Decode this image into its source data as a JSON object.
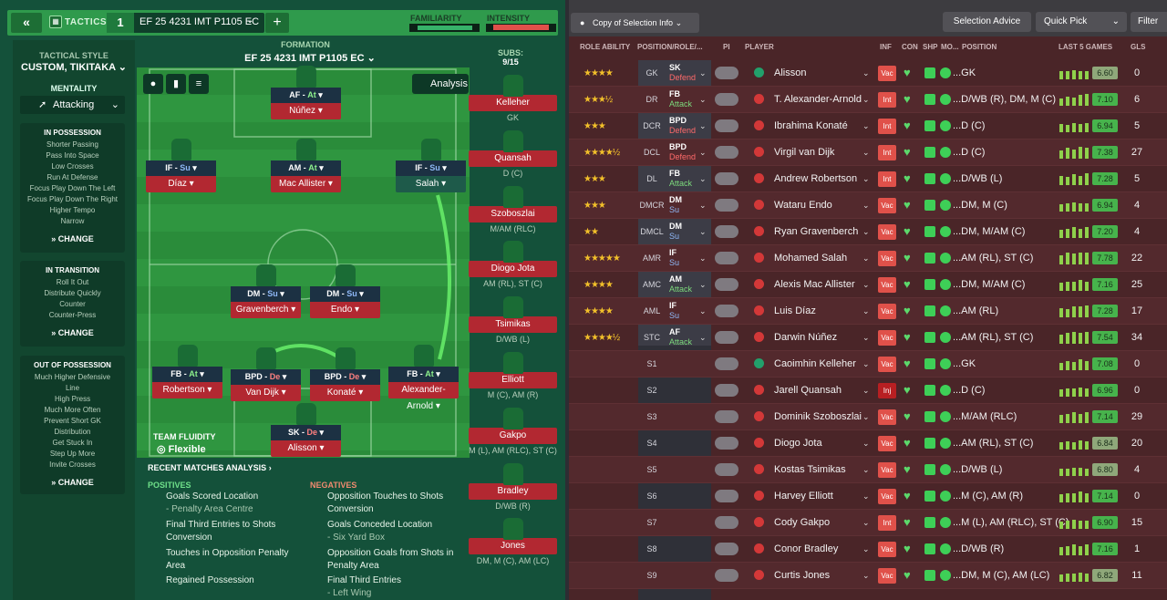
{
  "colors": {
    "accent_green": "#2f9a4c",
    "danger_red": "#b22831",
    "pitch": "#2a8c3a",
    "right_bg": "#4a2528"
  },
  "header": {
    "tactics_label": "TACTICS",
    "tactic_number": "1",
    "tactic_name": "EF 25 4231 IMT P1105 EC",
    "familiarity_label": "FAMILIARITY",
    "intensity_label": "INTENSITY",
    "familiarity_level": 0.88,
    "intensity_level": 0.9
  },
  "style": {
    "label": "TACTICAL STYLE",
    "name": "CUSTOM, TIKITAKA"
  },
  "mentality": {
    "label": "MENTALITY",
    "value": "Attacking"
  },
  "in_possession": {
    "title": "IN POSSESSION",
    "items": [
      "Shorter Passing",
      "Pass Into Space",
      "Low Crosses",
      "Run At Defense",
      "Focus Play Down The Left",
      "Focus Play Down The Right",
      "Higher Tempo",
      "Narrow"
    ],
    "change": "CHANGE"
  },
  "in_transition": {
    "title": "IN TRANSITION",
    "items": [
      "Roll It Out",
      "Distribute Quickly",
      "Counter",
      "Counter-Press"
    ],
    "change": "CHANGE"
  },
  "out_possession": {
    "title": "OUT OF POSSESSION",
    "items": [
      "Much Higher Defensive",
      "Line",
      "High Press",
      "Much More Often",
      "Prevent Short GK",
      "Distribution",
      "Get Stuck In",
      "Step Up More",
      "Invite Crosses"
    ],
    "change": "CHANGE"
  },
  "formation": {
    "label": "FORMATION",
    "name": "EF 25 4231 IMT P1105 EC",
    "analysis": "Analysis"
  },
  "subs": {
    "label": "SUBS:",
    "count": "9/15"
  },
  "pitch_players": [
    {
      "role": "AF",
      "duty": "At",
      "name": "Núñez"
    },
    {
      "role": "IF",
      "duty": "Su",
      "name": "Díaz"
    },
    {
      "role": "AM",
      "duty": "At",
      "name": "Mac Allister"
    },
    {
      "role": "IF",
      "duty": "Su",
      "name": "Salah"
    },
    {
      "role": "DM",
      "duty": "Su",
      "name": "Gravenberch"
    },
    {
      "role": "DM",
      "duty": "Su",
      "name": "Endo"
    },
    {
      "role": "FB",
      "duty": "At",
      "name": "Robertson"
    },
    {
      "role": "BPD",
      "duty": "De",
      "name": "Van Dijk"
    },
    {
      "role": "BPD",
      "duty": "De",
      "name": "Konaté"
    },
    {
      "role": "FB",
      "duty": "At",
      "name": "Alexander-Arnold"
    },
    {
      "role": "SK",
      "duty": "De",
      "name": "Alisson"
    }
  ],
  "subs_list": [
    {
      "name": "Kelleher",
      "pos": "GK"
    },
    {
      "name": "Quansah",
      "pos": "D (C)"
    },
    {
      "name": "Szoboszlai",
      "pos": "M/AM (RLC)"
    },
    {
      "name": "Diogo Jota",
      "pos": "AM (RL), ST (C)"
    },
    {
      "name": "Tsimikas",
      "pos": "D/WB (L)"
    },
    {
      "name": "Elliott",
      "pos": "M (C), AM (R)"
    },
    {
      "name": "Gakpo",
      "pos": "M (L), AM (RLC), ST (C)"
    },
    {
      "name": "Bradley",
      "pos": "D/WB (R)"
    },
    {
      "name": "Jones",
      "pos": "DM, M (C), AM (LC)"
    }
  ],
  "fluidity": {
    "label": "TEAM FLUIDITY",
    "value": "Flexible"
  },
  "recent": {
    "title": "RECENT MATCHES ANALYSIS",
    "positives_label": "POSITIVES",
    "negatives_label": "NEGATIVES",
    "positives": [
      "Goals Scored Location",
      "- Penalty Area Centre",
      "Final Third Entries to Shots",
      "Conversion",
      "Touches in Opposition Penalty",
      "Area",
      "Regained Possession"
    ],
    "negatives": [
      "Opposition Touches to Shots",
      "Conversion",
      "Goals Conceded Location",
      "- Six Yard Box",
      "Opposition Goals from Shots in",
      "Penalty Area",
      "Final Third Entries",
      "- Left Wing"
    ]
  },
  "toolbar": {
    "copy": "Copy of Selection Info",
    "selection_advice": "Selection Advice",
    "quick_pick": "Quick Pick",
    "filter": "Filter"
  },
  "columns": {
    "role_ability": "ROLE ABILITY",
    "position_role": "POSITION/ROLE/...",
    "pi": "PI",
    "player": "PLAYER",
    "inf": "INF",
    "con": "CON",
    "shp": "SHP",
    "mo": "MO...",
    "position": "POSITION",
    "last5": "LAST 5 GAMES",
    "gls": "GLS"
  },
  "rows": [
    {
      "stars": "★★★★",
      "pos": "GK",
      "role": "SK",
      "duty": "Defend",
      "dc": "de",
      "name": "Alisson",
      "inf": "Vac",
      "position": "...GK",
      "rating": "6.60",
      "gls": "0",
      "form": [
        0.7,
        0.7,
        0.8,
        0.7,
        0.7
      ]
    },
    {
      "stars": "★★★½",
      "pos": "DR",
      "role": "FB",
      "duty": "Attack",
      "dc": "at",
      "name": "T. Alexander-Arnold",
      "inf": "Int",
      "position": "...D/WB (R), DM, M (C)",
      "rating": "7.10",
      "gls": "6",
      "form": [
        0.6,
        0.8,
        0.7,
        0.9,
        1.0
      ]
    },
    {
      "stars": "★★★",
      "pos": "DCR",
      "role": "BPD",
      "duty": "Defend",
      "dc": "de",
      "name": "Ibrahima Konaté",
      "inf": "Int",
      "position": "...D (C)",
      "rating": "6.94",
      "gls": "5",
      "form": [
        0.7,
        0.6,
        0.8,
        0.7,
        0.8
      ]
    },
    {
      "stars": "★★★★½",
      "pos": "DCL",
      "role": "BPD",
      "duty": "Defend",
      "dc": "de",
      "name": "Virgil van Dijk",
      "inf": "Int",
      "position": "...D (C)",
      "rating": "7.38",
      "gls": "27",
      "form": [
        0.7,
        0.9,
        0.8,
        1.0,
        0.9
      ]
    },
    {
      "stars": "★★★",
      "pos": "DL",
      "role": "FB",
      "duty": "Attack",
      "dc": "at",
      "name": "Andrew Robertson",
      "inf": "Int",
      "position": "...D/WB (L)",
      "rating": "7.28",
      "gls": "5",
      "form": [
        0.8,
        0.7,
        0.9,
        0.8,
        1.0
      ]
    },
    {
      "stars": "★★★",
      "pos": "DMCR",
      "role": "DM",
      "duty": "Su",
      "dc": "su",
      "name": "Wataru Endo",
      "inf": "Vac",
      "position": "...DM, M (C)",
      "rating": "6.94",
      "gls": "4",
      "form": [
        0.6,
        0.7,
        0.8,
        0.7,
        0.7
      ]
    },
    {
      "stars": "★★",
      "pos": "DMCL",
      "role": "DM",
      "duty": "Su",
      "dc": "su",
      "name": "Ryan Gravenberch",
      "inf": "Vac",
      "position": "...DM, M/AM (C)",
      "rating": "7.20",
      "gls": "4",
      "form": [
        0.7,
        0.8,
        0.9,
        0.8,
        0.9
      ]
    },
    {
      "stars": "★★★★★",
      "pos": "AMR",
      "role": "IF",
      "duty": "Su",
      "dc": "su",
      "name": "Mohamed Salah",
      "inf": "Vac",
      "position": "...AM (RL), ST (C)",
      "rating": "7.78",
      "gls": "22",
      "form": [
        0.8,
        1.0,
        0.9,
        1.0,
        1.0
      ]
    },
    {
      "stars": "★★★★",
      "pos": "AMC",
      "role": "AM",
      "duty": "Attack",
      "dc": "at",
      "name": "Alexis Mac Allister",
      "inf": "Vac",
      "position": "...DM, M/AM (C)",
      "rating": "7.16",
      "gls": "25",
      "form": [
        0.7,
        0.8,
        0.8,
        0.9,
        0.8
      ]
    },
    {
      "stars": "★★★★",
      "pos": "AML",
      "role": "IF",
      "duty": "Su",
      "dc": "su",
      "name": "Luis Díaz",
      "inf": "Vac",
      "position": "...AM (RL)",
      "rating": "7.28",
      "gls": "17",
      "form": [
        0.8,
        0.7,
        0.9,
        0.9,
        1.0
      ]
    },
    {
      "stars": "★★★★½",
      "pos": "STC",
      "role": "AF",
      "duty": "Attack",
      "dc": "at",
      "name": "Darwin Núñez",
      "inf": "Vac",
      "position": "...AM (RL), ST (C)",
      "rating": "7.54",
      "gls": "34",
      "form": [
        0.8,
        0.9,
        1.0,
        0.9,
        1.0
      ]
    },
    {
      "stars": "",
      "pos": "S1",
      "role": "",
      "duty": "",
      "dc": "",
      "name": "Caoimhin Kelleher",
      "inf": "Vac",
      "position": "...GK",
      "rating": "7.08",
      "gls": "0",
      "form": [
        0.6,
        0.8,
        0.7,
        0.9,
        0.8
      ]
    },
    {
      "stars": "",
      "pos": "S2",
      "role": "",
      "duty": "",
      "dc": "",
      "name": "Jarell Quansah",
      "inf": "Inj",
      "position": "...D (C)",
      "rating": "6.96",
      "gls": "0",
      "form": [
        0.6,
        0.7,
        0.7,
        0.8,
        0.7
      ]
    },
    {
      "stars": "",
      "pos": "S3",
      "role": "",
      "duty": "",
      "dc": "",
      "name": "Dominik Szoboszlai",
      "inf": "Vac",
      "position": "...M/AM (RLC)",
      "rating": "7.14",
      "gls": "29",
      "form": [
        0.7,
        0.8,
        0.9,
        0.8,
        0.9
      ]
    },
    {
      "stars": "",
      "pos": "S4",
      "role": "",
      "duty": "",
      "dc": "",
      "name": "Diogo Jota",
      "inf": "Vac",
      "position": "...AM (RL), ST (C)",
      "rating": "6.84",
      "gls": "20",
      "form": [
        0.6,
        0.7,
        0.6,
        0.8,
        0.7
      ]
    },
    {
      "stars": "",
      "pos": "S5",
      "role": "",
      "duty": "",
      "dc": "",
      "name": "Kostas Tsimikas",
      "inf": "Vac",
      "position": "...D/WB (L)",
      "rating": "6.80",
      "gls": "4",
      "form": [
        0.6,
        0.6,
        0.7,
        0.7,
        0.6
      ]
    },
    {
      "stars": "",
      "pos": "S6",
      "role": "",
      "duty": "",
      "dc": "",
      "name": "Harvey Elliott",
      "inf": "Vac",
      "position": "...M (C), AM (R)",
      "rating": "7.14",
      "gls": "0",
      "form": [
        0.7,
        0.8,
        0.8,
        0.9,
        0.8
      ]
    },
    {
      "stars": "",
      "pos": "S7",
      "role": "",
      "duty": "",
      "dc": "",
      "name": "Cody Gakpo",
      "inf": "Int",
      "position": "...M (L), AM (RLC), ST (C)",
      "rating": "6.90",
      "gls": "15",
      "form": [
        0.6,
        0.7,
        0.8,
        0.7,
        0.7
      ]
    },
    {
      "stars": "",
      "pos": "S8",
      "role": "",
      "duty": "",
      "dc": "",
      "name": "Conor Bradley",
      "inf": "Vac",
      "position": "...D/WB (R)",
      "rating": "7.16",
      "gls": "1",
      "form": [
        0.7,
        0.8,
        0.9,
        0.8,
        0.9
      ]
    },
    {
      "stars": "",
      "pos": "S9",
      "role": "",
      "duty": "",
      "dc": "",
      "name": "Curtis Jones",
      "inf": "Vac",
      "position": "...DM, M (C), AM (LC)",
      "rating": "6.82",
      "gls": "11",
      "form": [
        0.6,
        0.7,
        0.7,
        0.8,
        0.7
      ]
    }
  ]
}
